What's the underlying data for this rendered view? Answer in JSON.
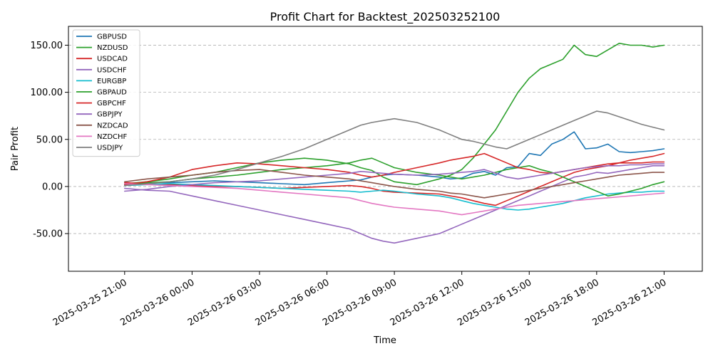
{
  "chart_data": {
    "type": "line",
    "title": "Profit Chart for Backtest_202503252100",
    "xlabel": "Time",
    "ylabel": "Pair Profit",
    "ylim": [
      -90,
      170
    ],
    "xlim": [
      -2.5,
      25.7
    ],
    "y_ticks": [
      -50,
      0,
      50,
      100,
      150
    ],
    "y_tick_labels": [
      "-50.00",
      "0.00",
      "50.00",
      "100.00",
      "150.00"
    ],
    "x_ticks": [
      0,
      3,
      6,
      9,
      12,
      15,
      18,
      21,
      24
    ],
    "x_tick_labels": [
      "2025-03-25 21:00",
      "2025-03-26 00:00",
      "2025-03-26 03:00",
      "2025-03-26 06:00",
      "2025-03-26 09:00",
      "2025-03-26 12:00",
      "2025-03-26 15:00",
      "2025-03-26 18:00",
      "2025-03-26 21:00"
    ],
    "x_unit": "hours since 2025-03-25 21:00",
    "grid": "y-dashed",
    "legend_position": "top-left",
    "series": [
      {
        "name": "GBPUSD",
        "color": "#1f77b4",
        "x": [
          0,
          1,
          2,
          3,
          4,
          5,
          6,
          7,
          8,
          9,
          10,
          10.5,
          11,
          11.5,
          12,
          13,
          14,
          14.5,
          15,
          15.5,
          16,
          16.5,
          17,
          17.5,
          18,
          18.5,
          19,
          19.5,
          20,
          20.5,
          21,
          21.5,
          22,
          22.5,
          23,
          23.5,
          24
        ],
        "y": [
          2,
          4,
          4,
          5,
          6,
          5,
          4,
          3,
          2,
          4,
          6,
          7,
          10,
          12,
          13,
          12,
          10,
          8,
          9,
          14,
          16,
          12,
          20,
          21,
          35,
          33,
          45,
          50,
          58,
          40,
          41,
          45,
          37,
          36,
          37,
          38,
          40
        ]
      },
      {
        "name": "NZDUSD",
        "color": "#2ca02c",
        "x": [
          0,
          1,
          2,
          3,
          4,
          5,
          6,
          7,
          8,
          9,
          10,
          10.5,
          11,
          11.5,
          12,
          13,
          14,
          14.5,
          15,
          15.5,
          16,
          16.5,
          17,
          17.5,
          18,
          18.5,
          19,
          19.5,
          20,
          20.5,
          21,
          21.5,
          22,
          22.5,
          23,
          23.5,
          24
        ],
        "y": [
          3,
          5,
          8,
          12,
          15,
          20,
          25,
          28,
          30,
          28,
          24,
          20,
          17,
          10,
          5,
          2,
          8,
          12,
          18,
          30,
          45,
          60,
          80,
          100,
          115,
          125,
          130,
          135,
          150,
          140,
          138,
          145,
          152,
          150,
          150,
          148,
          150
        ]
      },
      {
        "name": "USDCAD",
        "color": "#d62728",
        "x": [
          0,
          1,
          2,
          3,
          4,
          5,
          6,
          7,
          8,
          9,
          10,
          10.5,
          11,
          11.5,
          12,
          13,
          14,
          14.5,
          15,
          15.5,
          16,
          16.5,
          17,
          17.5,
          18,
          18.5,
          19,
          19.5,
          20,
          20.5,
          21,
          21.5,
          22,
          22.5,
          23,
          23.5,
          24
        ],
        "y": [
          4,
          3,
          2,
          1,
          0,
          0,
          -1,
          -2,
          -1,
          0,
          1,
          0,
          -2,
          -5,
          -6,
          -7,
          -8,
          -10,
          -12,
          -15,
          -18,
          -20,
          -15,
          -10,
          -5,
          0,
          5,
          10,
          15,
          18,
          20,
          22,
          25,
          28,
          30,
          32,
          35
        ]
      },
      {
        "name": "USDCHF",
        "color": "#9467bd",
        "x": [
          0,
          1,
          2,
          3,
          4,
          5,
          6,
          7,
          8,
          9,
          10,
          10.5,
          11,
          11.5,
          12,
          13,
          14,
          14.5,
          15,
          15.5,
          16,
          16.5,
          17,
          17.5,
          18,
          18.5,
          19,
          19.5,
          20,
          20.5,
          21,
          21.5,
          22,
          22.5,
          23,
          23.5,
          24
        ],
        "y": [
          -2,
          -4,
          -5,
          -10,
          -15,
          -20,
          -25,
          -30,
          -35,
          -40,
          -45,
          -50,
          -55,
          -58,
          -60,
          -55,
          -50,
          -45,
          -40,
          -35,
          -30,
          -25,
          -20,
          -15,
          -10,
          -5,
          0,
          5,
          10,
          12,
          15,
          14,
          16,
          18,
          20,
          22,
          22
        ]
      },
      {
        "name": "EURGBP",
        "color": "#17becf",
        "x": [
          0,
          1,
          2,
          3,
          4,
          5,
          6,
          7,
          8,
          9,
          10,
          10.5,
          11,
          11.5,
          12,
          13,
          14,
          14.5,
          15,
          15.5,
          16,
          16.5,
          17,
          17.5,
          18,
          18.5,
          19,
          19.5,
          20,
          20.5,
          21,
          21.5,
          22,
          22.5,
          23,
          23.5,
          24
        ],
        "y": [
          1,
          2,
          3,
          2,
          1,
          0,
          -1,
          -2,
          -3,
          -4,
          -5,
          -6,
          -5,
          -4,
          -5,
          -8,
          -10,
          -12,
          -15,
          -18,
          -20,
          -22,
          -24,
          -25,
          -24,
          -22,
          -20,
          -18,
          -15,
          -12,
          -10,
          -8,
          -7,
          -6,
          -6,
          -5,
          -5
        ]
      },
      {
        "name": "GBPAUD",
        "color": "#2ca02c",
        "x": [
          0,
          1,
          2,
          3,
          4,
          5,
          6,
          7,
          8,
          9,
          10,
          10.5,
          11,
          11.5,
          12,
          13,
          14,
          14.5,
          15,
          15.5,
          16,
          16.5,
          17,
          17.5,
          18,
          18.5,
          19,
          19.5,
          20,
          20.5,
          21,
          21.5,
          22,
          22.5,
          23,
          23.5,
          24
        ],
        "y": [
          2,
          4,
          5,
          8,
          10,
          12,
          15,
          18,
          20,
          22,
          25,
          28,
          30,
          25,
          20,
          15,
          12,
          10,
          8,
          10,
          12,
          15,
          18,
          20,
          22,
          18,
          15,
          10,
          5,
          0,
          -5,
          -10,
          -8,
          -5,
          -2,
          2,
          5
        ]
      },
      {
        "name": "GBPCHF",
        "color": "#d62728",
        "x": [
          0,
          1,
          2,
          3,
          4,
          5,
          6,
          7,
          8,
          9,
          10,
          10.5,
          11,
          11.5,
          12,
          13,
          14,
          14.5,
          15,
          15.5,
          16,
          16.5,
          17,
          17.5,
          18,
          18.5,
          19,
          19.5,
          20,
          20.5,
          21,
          21.5,
          22,
          22.5,
          23,
          23.5,
          24
        ],
        "y": [
          2,
          5,
          10,
          18,
          22,
          25,
          24,
          22,
          20,
          18,
          15,
          12,
          10,
          12,
          15,
          20,
          25,
          28,
          30,
          32,
          35,
          30,
          25,
          20,
          18,
          15,
          14,
          16,
          18,
          20,
          22,
          24,
          25,
          25,
          25,
          26,
          26
        ]
      },
      {
        "name": "GBPJPY",
        "color": "#9467bd",
        "x": [
          0,
          1,
          2,
          3,
          4,
          5,
          6,
          7,
          8,
          9,
          10,
          10.5,
          11,
          11.5,
          12,
          13,
          14,
          14.5,
          15,
          15.5,
          16,
          16.5,
          17,
          17.5,
          18,
          18.5,
          19,
          19.5,
          20,
          20.5,
          21,
          21.5,
          22,
          22.5,
          23,
          23.5,
          24
        ],
        "y": [
          -5,
          -3,
          0,
          2,
          4,
          5,
          6,
          8,
          10,
          12,
          14,
          16,
          15,
          14,
          13,
          12,
          13,
          14,
          15,
          16,
          18,
          14,
          10,
          8,
          10,
          12,
          14,
          16,
          18,
          20,
          21,
          22,
          22,
          23,
          23,
          24,
          24
        ]
      },
      {
        "name": "NZDCAD",
        "color": "#8c564b",
        "x": [
          0,
          1,
          2,
          3,
          4,
          5,
          6,
          7,
          8,
          9,
          10,
          10.5,
          11,
          11.5,
          12,
          13,
          14,
          14.5,
          15,
          15.5,
          16,
          16.5,
          17,
          17.5,
          18,
          18.5,
          19,
          19.5,
          20,
          20.5,
          21,
          21.5,
          22,
          22.5,
          23,
          23.5,
          24
        ],
        "y": [
          5,
          8,
          10,
          12,
          15,
          17,
          18,
          15,
          12,
          10,
          8,
          6,
          4,
          2,
          0,
          -3,
          -5,
          -7,
          -8,
          -10,
          -12,
          -10,
          -8,
          -6,
          -4,
          -2,
          0,
          2,
          4,
          6,
          8,
          10,
          12,
          13,
          14,
          15,
          15
        ]
      },
      {
        "name": "NZDCHF",
        "color": "#e377c2",
        "x": [
          0,
          1,
          2,
          3,
          4,
          5,
          6,
          7,
          8,
          9,
          10,
          10.5,
          11,
          11.5,
          12,
          13,
          14,
          14.5,
          15,
          15.5,
          16,
          16.5,
          17,
          17.5,
          18,
          18.5,
          19,
          19.5,
          20,
          20.5,
          21,
          21.5,
          22,
          22.5,
          23,
          23.5,
          24
        ],
        "y": [
          3,
          2,
          1,
          0,
          -1,
          -2,
          -4,
          -6,
          -8,
          -10,
          -12,
          -15,
          -18,
          -20,
          -22,
          -24,
          -26,
          -28,
          -30,
          -28,
          -26,
          -24,
          -22,
          -20,
          -19,
          -18,
          -17,
          -16,
          -15,
          -14,
          -13,
          -12,
          -11,
          -10,
          -9,
          -8,
          -7
        ]
      },
      {
        "name": "USDJPY",
        "color": "#7f7f7f",
        "x": [
          0,
          1,
          2,
          3,
          4,
          5,
          6,
          7,
          8,
          9,
          10,
          10.5,
          11,
          11.5,
          12,
          13,
          14,
          14.5,
          15,
          15.5,
          16,
          16.5,
          17,
          17.5,
          18,
          18.5,
          19,
          19.5,
          20,
          20.5,
          21,
          21.5,
          22,
          22.5,
          23,
          23.5,
          24
        ],
        "y": [
          1,
          3,
          5,
          8,
          12,
          18,
          25,
          32,
          40,
          50,
          60,
          65,
          68,
          70,
          72,
          68,
          60,
          55,
          50,
          48,
          45,
          42,
          40,
          45,
          50,
          55,
          60,
          65,
          70,
          75,
          80,
          78,
          74,
          70,
          66,
          63,
          60
        ]
      }
    ]
  }
}
